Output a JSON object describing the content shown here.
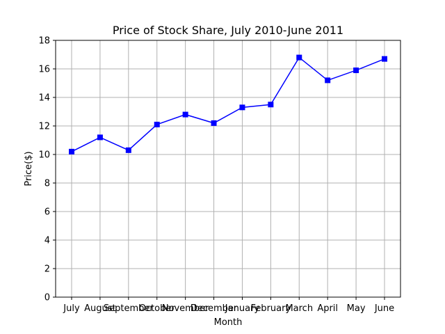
{
  "chart_data": {
    "type": "line",
    "title": "Price of Stock Share, July 2010-June 2011",
    "xlabel": "Month",
    "ylabel": "Price($)",
    "categories": [
      "July",
      "August",
      "September",
      "October",
      "November",
      "December",
      "January",
      "February",
      "March",
      "April",
      "May",
      "June"
    ],
    "series": [
      {
        "values": [
          10.2,
          11.2,
          10.3,
          12.1,
          12.8,
          12.2,
          13.3,
          13.5,
          16.8,
          15.2,
          15.9,
          16.7
        ],
        "color": "#0000ff",
        "marker": "square"
      }
    ],
    "ylim": [
      0,
      18
    ],
    "yticks": [
      0,
      2,
      4,
      6,
      8,
      10,
      12,
      14,
      16,
      18
    ],
    "grid": true
  }
}
